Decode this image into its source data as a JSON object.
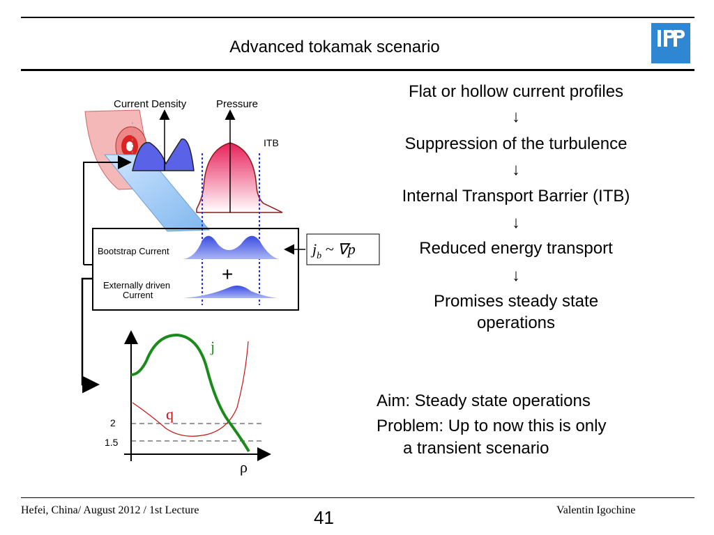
{
  "header": {
    "title": "Advanced tokamak scenario",
    "logo_text": "IPP"
  },
  "flow": {
    "steps": [
      "Flat or hollow current profiles",
      "Suppression of the turbulence",
      "Internal Transport Barrier (ITB)",
      "Reduced  energy transport",
      "Promises steady state",
      "operations"
    ],
    "arrow": "↓"
  },
  "aim": {
    "line1": "Aim: Steady state operations",
    "line2": "Problem: Up to now this is only",
    "line3": "a transient scenario"
  },
  "diagram": {
    "current_density_label": "Current Density",
    "pressure_label": "Pressure",
    "itb_label": "ITB",
    "bootstrap_label": "Bootstrap Current",
    "external_label_1": "Externally driven",
    "external_label_2": "Current",
    "plus": "+",
    "formula_j": "j",
    "formula_b": "b",
    "formula_rest": " ~ ∇p"
  },
  "plot": {
    "j_label": "j",
    "q_label": "q",
    "rho_label": "ρ",
    "tick_2": "2",
    "tick_15": "1.5",
    "colors": {
      "j": "#1a8a1a",
      "q": "#cc1111"
    }
  },
  "footer": {
    "left": "Hefei, China/ August 2012 / 1st Lecture",
    "page": "41",
    "right": "Valentin Igochine"
  }
}
